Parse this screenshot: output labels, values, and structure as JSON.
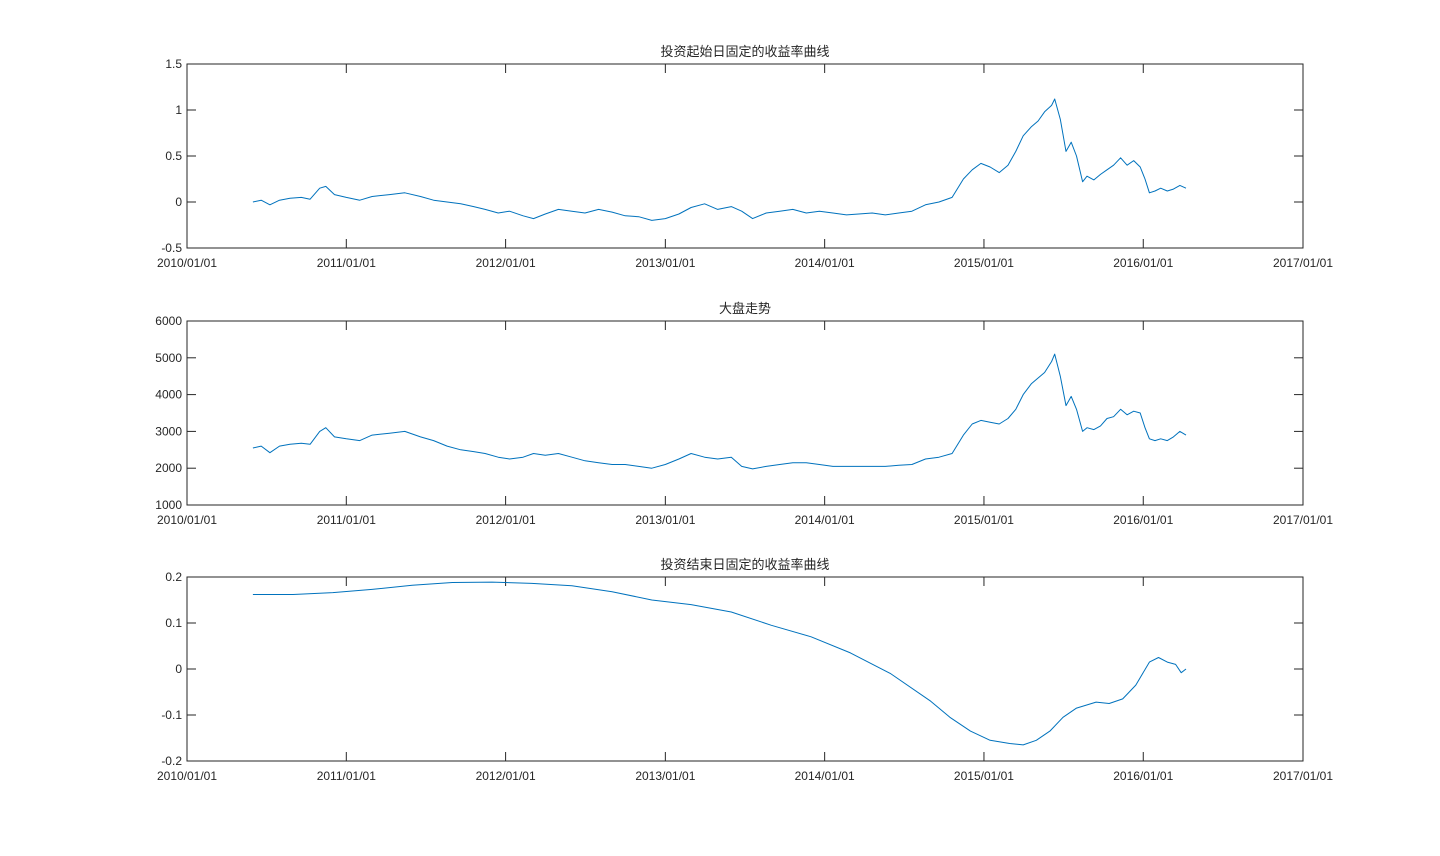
{
  "figure": {
    "background": "#ffffff",
    "line_color": "#0072BD",
    "axis_color": "#262626"
  },
  "chart_data": [
    {
      "type": "line",
      "title": "投资起始日固定的收益率曲线",
      "xlabel": "",
      "ylabel": "",
      "xlim": [
        "2010/01/01",
        "2017/01/01"
      ],
      "ylim": [
        -0.5,
        1.5
      ],
      "xticks": [
        "2010/01/01",
        "2011/01/01",
        "2012/01/01",
        "2013/01/01",
        "2014/01/01",
        "2015/01/01",
        "2016/01/01",
        "2017/01/01"
      ],
      "yticks": [
        -0.5,
        0,
        0.5,
        1,
        1.5
      ],
      "ytick_labels": [
        "-0.5",
        "0",
        "0.5",
        "1",
        "1.5"
      ],
      "grid": false,
      "series": [
        {
          "x": [
            "2010/06/01",
            "2010/06/20",
            "2010/07/10",
            "2010/08/01",
            "2010/08/25",
            "2010/09/20",
            "2010/10/10",
            "2010/11/01",
            "2010/11/15",
            "2010/12/05",
            "2011/01/01",
            "2011/02/01",
            "2011/03/01",
            "2011/04/10",
            "2011/05/15",
            "2011/06/20",
            "2011/07/20",
            "2011/08/20",
            "2011/09/20",
            "2011/10/20",
            "2011/11/15",
            "2011/12/15",
            "2012/01/10",
            "2012/02/10",
            "2012/03/05",
            "2012/04/01",
            "2012/05/01",
            "2012/06/01",
            "2012/07/01",
            "2012/08/01",
            "2012/09/01",
            "2012/10/01",
            "2012/11/01",
            "2012/12/01",
            "2013/01/01",
            "2013/02/01",
            "2013/03/01",
            "2013/04/01",
            "2013/05/01",
            "2013/06/01",
            "2013/06/25",
            "2013/07/20",
            "2013/08/20",
            "2013/09/20",
            "2013/10/20",
            "2013/11/20",
            "2013/12/20",
            "2014/01/20",
            "2014/02/20",
            "2014/03/20",
            "2014/04/20",
            "2014/05/20",
            "2014/06/20",
            "2014/07/20",
            "2014/08/20",
            "2014/09/20",
            "2014/10/20",
            "2014/11/15",
            "2014/12/05",
            "2014/12/25",
            "2015/01/15",
            "2015/02/05",
            "2015/02/25",
            "2015/03/15",
            "2015/04/01",
            "2015/04/20",
            "2015/05/05",
            "2015/05/20",
            "2015/06/05",
            "2015/06/12",
            "2015/06/25",
            "2015/07/08",
            "2015/07/20",
            "2015/08/01",
            "2015/08/15",
            "2015/08/25",
            "2015/09/10",
            "2015/09/25",
            "2015/10/10",
            "2015/10/25",
            "2015/11/10",
            "2015/11/25",
            "2015/12/10",
            "2015/12/25",
            "2016/01/05",
            "2016/01/15",
            "2016/01/28",
            "2016/02/10",
            "2016/02/25",
            "2016/03/10",
            "2016/03/25",
            "2016/04/08"
          ],
          "values": [
            0.0,
            0.02,
            -0.03,
            0.02,
            0.04,
            0.05,
            0.03,
            0.15,
            0.17,
            0.08,
            0.05,
            0.02,
            0.06,
            0.08,
            0.1,
            0.06,
            0.02,
            0.0,
            -0.02,
            -0.05,
            -0.08,
            -0.12,
            -0.1,
            -0.15,
            -0.18,
            -0.13,
            -0.08,
            -0.1,
            -0.12,
            -0.08,
            -0.11,
            -0.15,
            -0.16,
            -0.2,
            -0.18,
            -0.13,
            -0.06,
            -0.02,
            -0.08,
            -0.05,
            -0.1,
            -0.18,
            -0.12,
            -0.1,
            -0.08,
            -0.12,
            -0.1,
            -0.12,
            -0.14,
            -0.13,
            -0.12,
            -0.14,
            -0.12,
            -0.1,
            -0.03,
            0.0,
            0.05,
            0.25,
            0.35,
            0.42,
            0.38,
            0.32,
            0.4,
            0.55,
            0.72,
            0.82,
            0.88,
            0.98,
            1.05,
            1.12,
            0.9,
            0.55,
            0.65,
            0.5,
            0.22,
            0.28,
            0.24,
            0.3,
            0.35,
            0.4,
            0.48,
            0.4,
            0.45,
            0.38,
            0.25,
            0.1,
            0.12,
            0.15,
            0.12,
            0.14,
            0.18,
            0.15
          ]
        }
      ]
    },
    {
      "type": "line",
      "title": "大盘走势",
      "xlabel": "",
      "ylabel": "",
      "xlim": [
        "2010/01/01",
        "2017/01/01"
      ],
      "ylim": [
        1000,
        6000
      ],
      "xticks": [
        "2010/01/01",
        "2011/01/01",
        "2012/01/01",
        "2013/01/01",
        "2014/01/01",
        "2015/01/01",
        "2016/01/01",
        "2017/01/01"
      ],
      "yticks": [
        1000,
        2000,
        3000,
        4000,
        5000,
        6000
      ],
      "ytick_labels": [
        "1000",
        "2000",
        "3000",
        "4000",
        "5000",
        "6000"
      ],
      "grid": false,
      "series": [
        {
          "x": [
            "2010/06/01",
            "2010/06/20",
            "2010/07/10",
            "2010/08/01",
            "2010/08/25",
            "2010/09/20",
            "2010/10/10",
            "2010/11/01",
            "2010/11/15",
            "2010/12/05",
            "2011/01/01",
            "2011/02/01",
            "2011/03/01",
            "2011/04/10",
            "2011/05/15",
            "2011/06/20",
            "2011/07/20",
            "2011/08/20",
            "2011/09/20",
            "2011/10/20",
            "2011/11/15",
            "2011/12/15",
            "2012/01/10",
            "2012/02/10",
            "2012/03/05",
            "2012/04/01",
            "2012/05/01",
            "2012/06/01",
            "2012/07/01",
            "2012/08/01",
            "2012/09/01",
            "2012/10/01",
            "2012/11/01",
            "2012/12/01",
            "2013/01/01",
            "2013/02/01",
            "2013/03/01",
            "2013/04/01",
            "2013/05/01",
            "2013/06/01",
            "2013/06/25",
            "2013/07/20",
            "2013/08/20",
            "2013/09/20",
            "2013/10/20",
            "2013/11/20",
            "2013/12/20",
            "2014/01/20",
            "2014/02/20",
            "2014/03/20",
            "2014/04/20",
            "2014/05/20",
            "2014/06/20",
            "2014/07/20",
            "2014/08/20",
            "2014/09/20",
            "2014/10/20",
            "2014/11/15",
            "2014/12/05",
            "2014/12/25",
            "2015/01/15",
            "2015/02/05",
            "2015/02/25",
            "2015/03/15",
            "2015/04/01",
            "2015/04/20",
            "2015/05/05",
            "2015/05/20",
            "2015/06/05",
            "2015/06/12",
            "2015/06/25",
            "2015/07/08",
            "2015/07/20",
            "2015/08/01",
            "2015/08/15",
            "2015/08/25",
            "2015/09/10",
            "2015/09/25",
            "2015/10/10",
            "2015/10/25",
            "2015/11/10",
            "2015/11/25",
            "2015/12/10",
            "2015/12/25",
            "2016/01/05",
            "2016/01/15",
            "2016/01/28",
            "2016/02/10",
            "2016/02/25",
            "2016/03/10",
            "2016/03/25",
            "2016/04/08"
          ],
          "values": [
            2550,
            2600,
            2420,
            2600,
            2650,
            2680,
            2650,
            3000,
            3100,
            2850,
            2800,
            2750,
            2900,
            2950,
            3000,
            2850,
            2750,
            2600,
            2500,
            2450,
            2400,
            2300,
            2250,
            2300,
            2400,
            2350,
            2400,
            2300,
            2200,
            2150,
            2100,
            2100,
            2050,
            2000,
            2100,
            2250,
            2400,
            2300,
            2250,
            2300,
            2050,
            1980,
            2050,
            2100,
            2150,
            2150,
            2100,
            2050,
            2050,
            2050,
            2050,
            2050,
            2080,
            2100,
            2250,
            2300,
            2400,
            2900,
            3200,
            3300,
            3250,
            3200,
            3350,
            3600,
            4000,
            4300,
            4450,
            4600,
            4900,
            5100,
            4500,
            3700,
            3950,
            3600,
            3000,
            3100,
            3050,
            3150,
            3350,
            3400,
            3600,
            3450,
            3550,
            3500,
            3100,
            2800,
            2750,
            2800,
            2750,
            2850,
            3000,
            2900
          ]
        }
      ]
    },
    {
      "type": "line",
      "title": "投资结束日固定的收益率曲线",
      "xlabel": "",
      "ylabel": "",
      "xlim": [
        "2010/01/01",
        "2017/01/01"
      ],
      "ylim": [
        -0.2,
        0.2
      ],
      "xticks": [
        "2010/01/01",
        "2011/01/01",
        "2012/01/01",
        "2013/01/01",
        "2014/01/01",
        "2015/01/01",
        "2016/01/01",
        "2017/01/01"
      ],
      "yticks": [
        -0.2,
        -0.1,
        0,
        0.1,
        0.2
      ],
      "ytick_labels": [
        "-0.2",
        "-0.1",
        "0",
        "0.1",
        "0.2"
      ],
      "grid": false,
      "series": [
        {
          "x": [
            "2010/06/01",
            "2010/09/01",
            "2010/12/01",
            "2011/03/01",
            "2011/06/01",
            "2011/09/01",
            "2011/12/01",
            "2012/03/01",
            "2012/06/01",
            "2012/09/01",
            "2012/12/01",
            "2013/03/01",
            "2013/06/01",
            "2013/09/01",
            "2013/12/01",
            "2014/03/01",
            "2014/06/01",
            "2014/09/01",
            "2014/10/15",
            "2014/12/01",
            "2015/01/15",
            "2015/03/01",
            "2015/04/01",
            "2015/05/01",
            "2015/06/01",
            "2015/07/01",
            "2015/08/01",
            "2015/09/15",
            "2015/10/15",
            "2015/11/15",
            "2015/12/15",
            "2016/01/15",
            "2016/02/05",
            "2016/02/25",
            "2016/03/15",
            "2016/03/28",
            "2016/04/08"
          ],
          "values": [
            0.162,
            0.162,
            0.166,
            0.173,
            0.182,
            0.188,
            0.189,
            0.186,
            0.181,
            0.168,
            0.15,
            0.14,
            0.124,
            0.095,
            0.07,
            0.035,
            -0.01,
            -0.07,
            -0.105,
            -0.135,
            -0.155,
            -0.162,
            -0.165,
            -0.155,
            -0.135,
            -0.105,
            -0.085,
            -0.072,
            -0.075,
            -0.065,
            -0.035,
            0.015,
            0.025,
            0.015,
            0.01,
            -0.008,
            0.0
          ]
        }
      ]
    }
  ]
}
